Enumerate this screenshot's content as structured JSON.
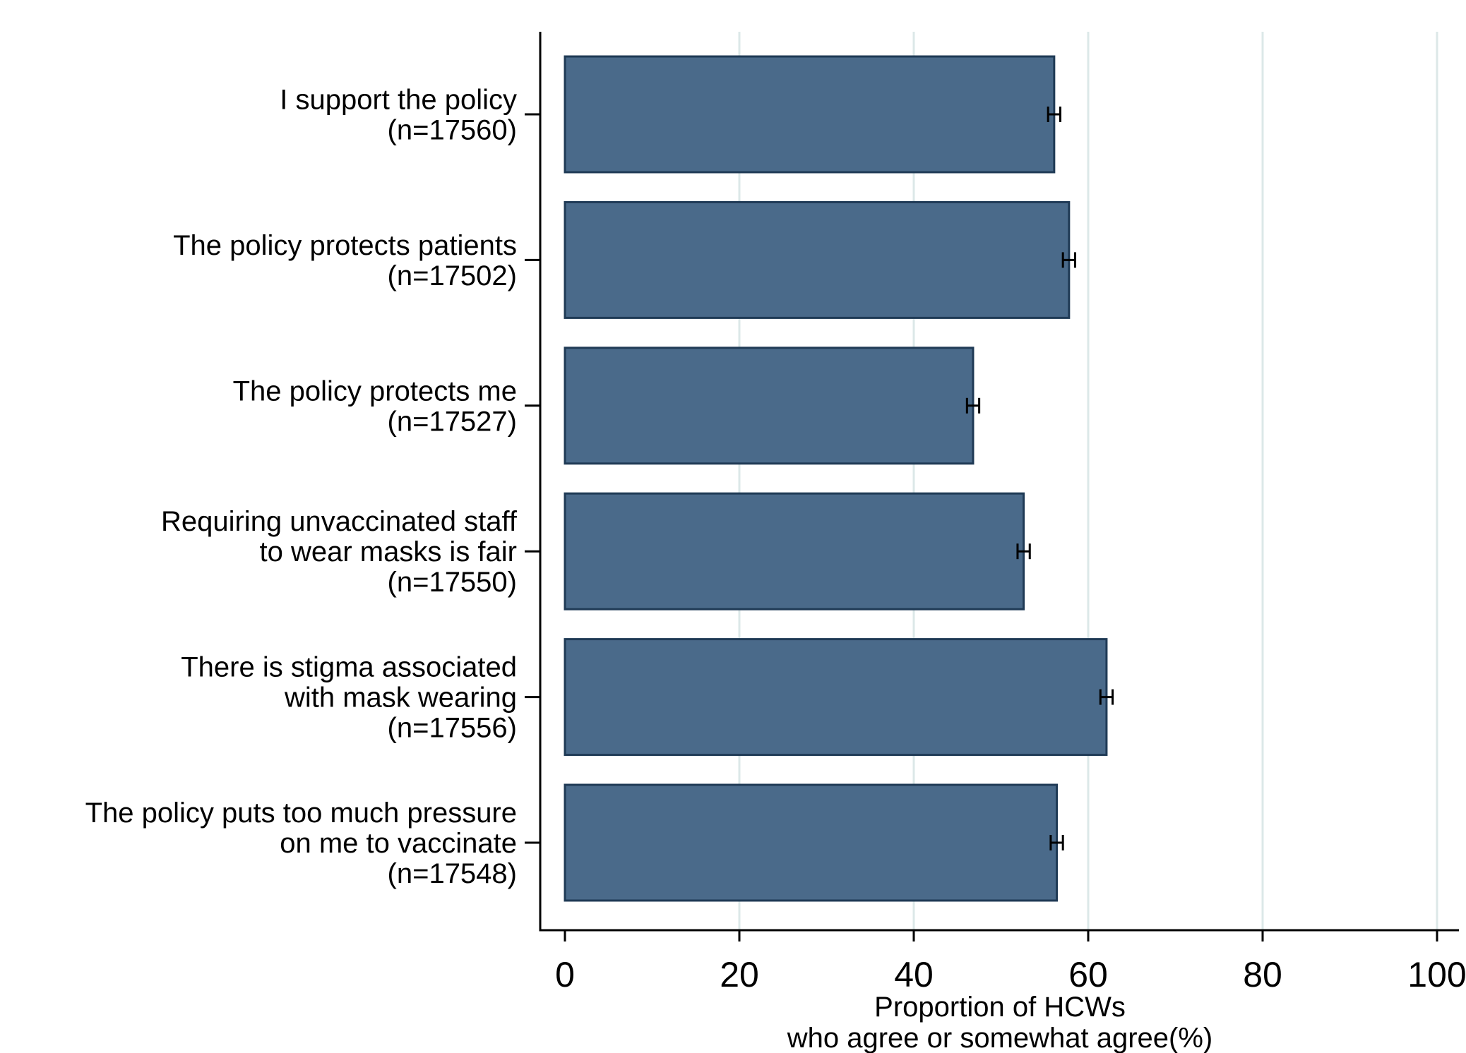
{
  "chart_data": {
    "type": "bar",
    "orientation": "horizontal",
    "categories": [
      [
        "I support the policy",
        "(n=17560)"
      ],
      [
        "The policy protects patients",
        "(n=17502)"
      ],
      [
        "The policy protects me",
        "(n=17527)"
      ],
      [
        "Requiring unvaccinated staff",
        "to wear masks is fair",
        "(n=17550)"
      ],
      [
        "There is stigma associated",
        "with mask wearing",
        "(n=17556)"
      ],
      [
        "The policy puts too much pressure",
        "on me to vaccinate",
        "(n=17548)"
      ]
    ],
    "values": [
      56.1,
      57.8,
      46.8,
      52.6,
      62.1,
      56.4
    ],
    "ci_low": [
      55.4,
      57.1,
      46.1,
      51.9,
      61.4,
      55.7
    ],
    "ci_high": [
      56.8,
      58.5,
      47.5,
      53.3,
      62.8,
      57.1
    ],
    "xlabel": [
      "Proportion of HCWs",
      "who agree or somewhat agree(%)"
    ],
    "xlim": [
      0,
      100
    ],
    "xticks": [
      0,
      20,
      40,
      60,
      80,
      100
    ],
    "grid": "vertical",
    "legend": "none",
    "bar_color": "#4a6a8a",
    "bar_edge_color": "#1f3a55",
    "grid_color": "#dce8e8",
    "axis_color": "#000000"
  }
}
